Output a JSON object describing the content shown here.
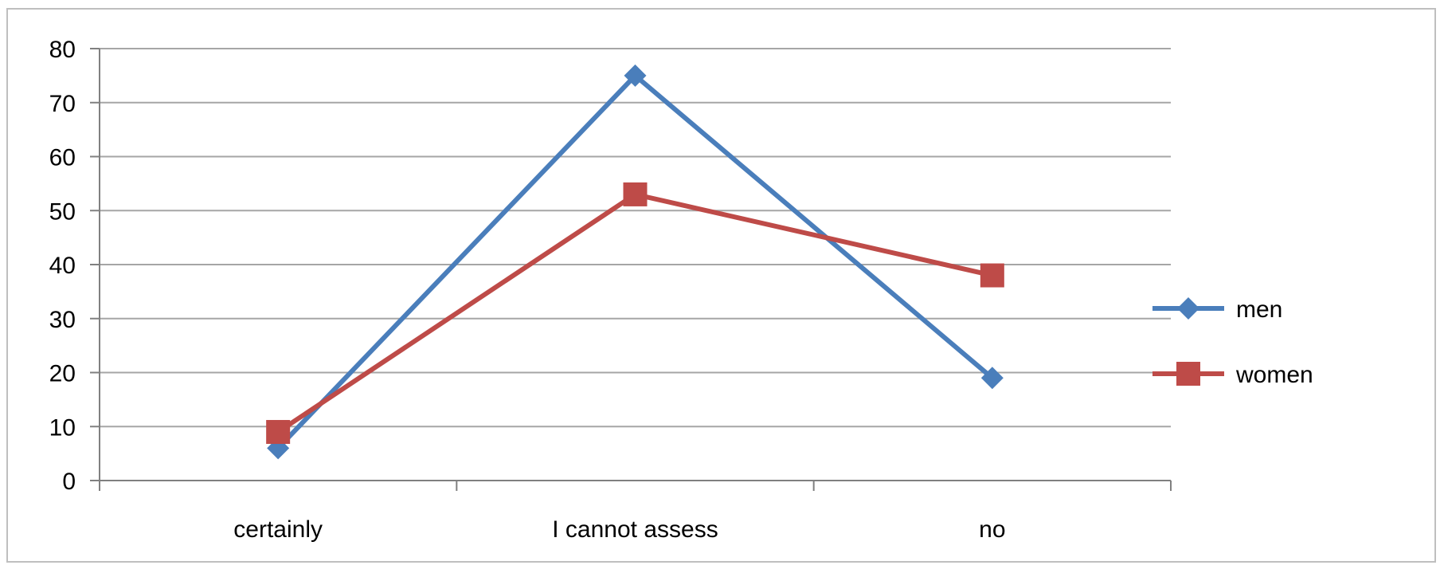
{
  "chart_data": {
    "type": "line",
    "title": "",
    "xlabel": "",
    "ylabel": "",
    "categories": [
      "certainly",
      "I cannot assess",
      "no"
    ],
    "ylim": [
      0,
      80
    ],
    "yticks": [
      0,
      10,
      20,
      30,
      40,
      50,
      60,
      70,
      80
    ],
    "grid": true,
    "legend_position": "right",
    "series": [
      {
        "name": "men",
        "values": [
          6,
          75,
          19
        ],
        "color": "#4a7ebb",
        "marker": "diamond"
      },
      {
        "name": "women",
        "values": [
          9,
          53,
          38
        ],
        "color": "#be4b48",
        "marker": "square"
      }
    ]
  }
}
